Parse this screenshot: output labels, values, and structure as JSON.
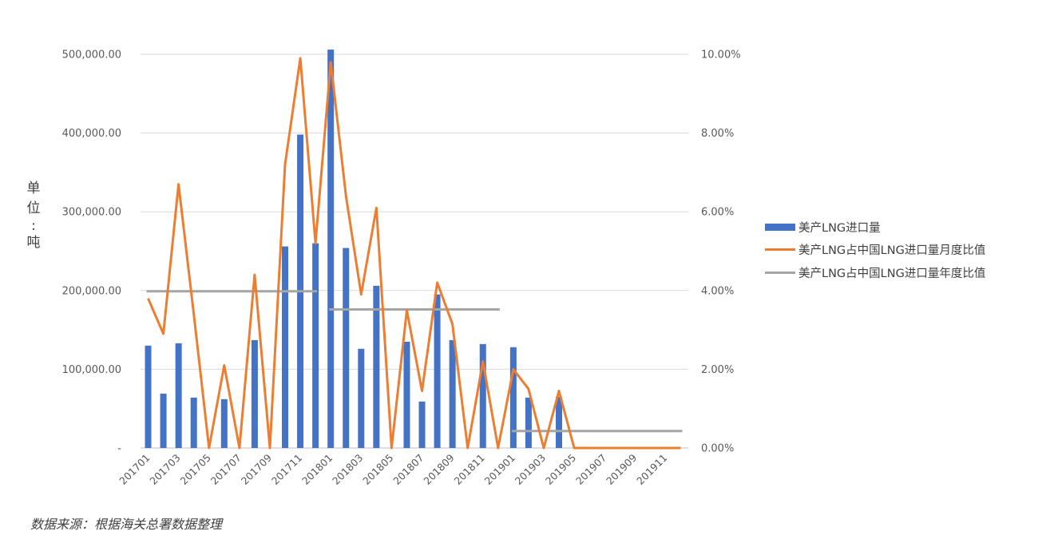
{
  "unit_label_chars": [
    "单",
    "位",
    ":",
    "吨"
  ],
  "source_text": "数据来源：根据海关总署数据整理",
  "chart_data": {
    "type": "bar",
    "categories": [
      "201701",
      "201702",
      "201703",
      "201704",
      "201705",
      "201706",
      "201707",
      "201708",
      "201709",
      "201710",
      "201711",
      "201712",
      "201801",
      "201802",
      "201803",
      "201804",
      "201805",
      "201806",
      "201807",
      "201808",
      "201809",
      "201810",
      "201811",
      "201812",
      "201901",
      "201902",
      "201903",
      "201904",
      "201905",
      "201906",
      "201907",
      "201908",
      "201909",
      "201910",
      "201911",
      "201912"
    ],
    "x_tick_labels": [
      "201701",
      "201703",
      "201705",
      "201707",
      "201709",
      "201711",
      "201801",
      "201803",
      "201805",
      "201807",
      "201809",
      "201811",
      "201901",
      "201903",
      "201905",
      "201907",
      "201909",
      "201911"
    ],
    "y_left": {
      "ylim": [
        0,
        500000
      ],
      "ticks": [
        "-",
        "100,000.00",
        "200,000.00",
        "300,000.00",
        "400,000.00",
        "500,000.00"
      ]
    },
    "y_right": {
      "ylim": [
        0,
        10
      ],
      "ticks": [
        "0.00%",
        "2.00%",
        "4.00%",
        "6.00%",
        "8.00%",
        "10.00%"
      ]
    },
    "grid": true,
    "legend_position": "right",
    "series": [
      {
        "name": "美产LNG进口量",
        "kind": "bar",
        "axis": "left",
        "color": "#4472C4",
        "values": [
          130000,
          69000,
          133000,
          64000,
          0,
          62000,
          0,
          137000,
          0,
          256000,
          398000,
          260000,
          506000,
          254000,
          126000,
          206000,
          0,
          135000,
          59000,
          195000,
          137000,
          0,
          132000,
          0,
          128000,
          64000,
          0,
          65000,
          0,
          0,
          0,
          0,
          0,
          0,
          0,
          0
        ]
      },
      {
        "name": "美产LNG占中国LNG进口量月度比值",
        "kind": "line",
        "axis": "right",
        "color": "#ED7D31",
        "values": [
          3.8,
          2.9,
          6.7,
          3.4,
          0,
          2.1,
          0,
          4.4,
          0,
          7.2,
          9.9,
          5.2,
          9.8,
          6.4,
          3.9,
          6.1,
          0,
          3.5,
          1.45,
          4.2,
          3.15,
          0,
          2.2,
          0,
          2.0,
          1.5,
          0,
          1.45,
          0,
          0,
          0,
          0,
          0,
          0,
          0,
          0
        ]
      },
      {
        "name": "美产LNG占中国LNG进口量年度比值",
        "kind": "step",
        "axis": "right",
        "color": "#A5A5A5",
        "segments": [
          {
            "from": "201701",
            "to": "201712",
            "value": 3.98
          },
          {
            "from": "201801",
            "to": "201812",
            "value": 3.52
          },
          {
            "from": "201901",
            "to": "201912",
            "value": 0.43
          }
        ]
      }
    ]
  }
}
